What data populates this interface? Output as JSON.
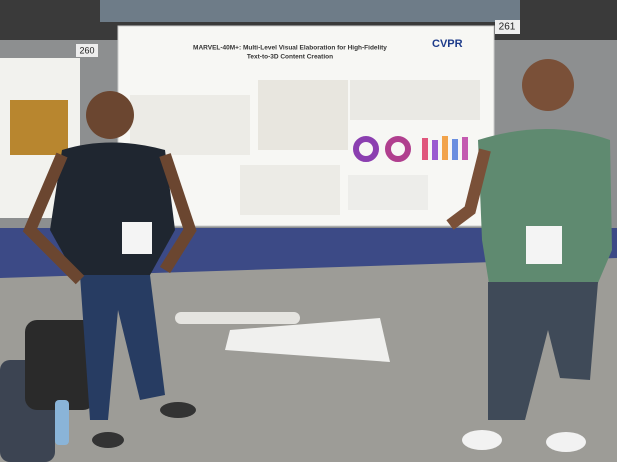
{
  "scene": {
    "board_numbers": [
      "260",
      "261"
    ],
    "poster": {
      "title": "MARVEL-40M+: Multi-Level Visual Elaboration for High-Fidelity",
      "subtitle": "Text-to-3D Content Creation",
      "logo": "CVPR"
    }
  }
}
